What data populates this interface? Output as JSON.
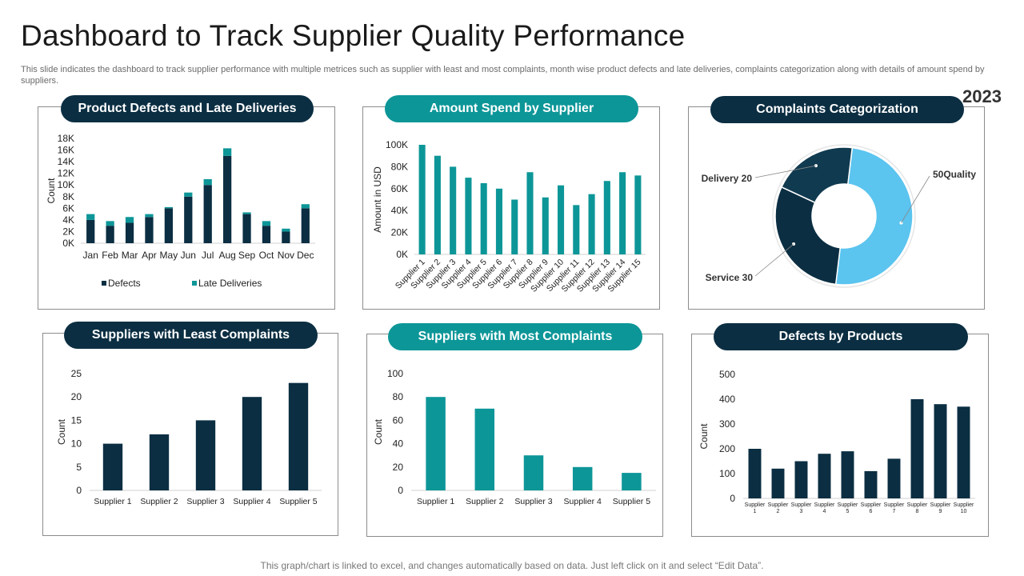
{
  "header": {
    "title": "Dashboard to Track Supplier Quality Performance",
    "subtitle": "This slide indicates the dashboard to track supplier performance with multiple metrices such as supplier with least and most complaints, month wise product defects and late deliveries, complaints categorization along with details of amount spend by suppliers.",
    "year": "2023"
  },
  "footer": {
    "note": "This graph/chart is linked to excel, and changes automatically based on data. Just left click on it and select “Edit Data”."
  },
  "colors": {
    "dark": "#0b2e42",
    "teal": "#0d9698",
    "light_blue": "#5bc4ef"
  },
  "chart_data": [
    {
      "id": "defects_late",
      "type": "bar",
      "stacked": true,
      "title": "Product Defects  and Late Deliveries",
      "ylabel": "Count",
      "categories": [
        "Jan",
        "Feb",
        "Mar",
        "Apr",
        "May",
        "Jun",
        "Jul",
        "Aug",
        "Sep",
        "Oct",
        "Nov",
        "Dec"
      ],
      "series": [
        {
          "name": "Defects",
          "color": "#0b2e42",
          "values": [
            4000,
            3000,
            3500,
            4500,
            6000,
            8000,
            10000,
            15000,
            5000,
            3000,
            2000,
            6000
          ]
        },
        {
          "name": "Late Deliveries",
          "color": "#0d9698",
          "values": [
            1000,
            800,
            1000,
            500,
            200,
            700,
            1000,
            1300,
            300,
            800,
            500,
            700
          ]
        }
      ],
      "ylim": [
        0,
        18000
      ],
      "yticks": [
        "0K",
        "2K",
        "4K",
        "6K",
        "8K",
        "10K",
        "12K",
        "14K",
        "16K",
        "18K"
      ],
      "legend": "bottom"
    },
    {
      "id": "amount_spend",
      "type": "bar",
      "title": "Amount Spend by Supplier",
      "ylabel": "Amount  in USD",
      "categories": [
        "Supplier 1",
        "Supplier 2",
        "Supplier 3",
        "Supplier 4",
        "Supplier 5",
        "Supplier 6",
        "Supplier 7",
        "Supplier 8",
        "Supplier 9",
        "Supplier 10",
        "Supplier 11",
        "Supplier 12",
        "Supplier 13",
        "Supplier 14",
        "Supplier 15"
      ],
      "values": [
        100000,
        90000,
        80000,
        70000,
        65000,
        60000,
        50000,
        75000,
        52000,
        63000,
        45000,
        55000,
        67000,
        75000,
        72000
      ],
      "ylim": [
        0,
        100000
      ],
      "yticks": [
        "0K",
        "20K",
        "40K",
        "60K",
        "80K",
        "100K"
      ]
    },
    {
      "id": "complaints_category",
      "type": "pie",
      "donut": true,
      "title": "Complaints Categorization",
      "slices": [
        {
          "name": "Quality",
          "value": 50,
          "label": "50Quality",
          "color": "#5bc4ef"
        },
        {
          "name": "Service",
          "value": 30,
          "label": "Service 30",
          "color": "#0b2e42"
        },
        {
          "name": "Delivery",
          "value": 20,
          "label": "Delivery 20",
          "color": "#103a50"
        }
      ]
    },
    {
      "id": "least_complaints",
      "type": "bar",
      "title": "Suppliers with Least Complaints",
      "ylabel": "Count",
      "categories": [
        "Supplier 1",
        "Supplier 2",
        "Supplier 3",
        "Supplier 4",
        "Supplier 5"
      ],
      "values": [
        10,
        12,
        15,
        20,
        23
      ],
      "ylim": [
        0,
        25
      ],
      "yticks": [
        "0",
        "5",
        "10",
        "15",
        "20",
        "25"
      ]
    },
    {
      "id": "most_complaints",
      "type": "bar",
      "title": "Suppliers with Most Complaints",
      "ylabel": "Count",
      "categories": [
        "Supplier 1",
        "Supplier 2",
        "Supplier 3",
        "Supplier 4",
        "Supplier 5"
      ],
      "values": [
        80,
        70,
        30,
        20,
        15
      ],
      "ylim": [
        0,
        100
      ],
      "yticks": [
        "0",
        "20",
        "40",
        "60",
        "80",
        "100"
      ]
    },
    {
      "id": "defects_products",
      "type": "bar",
      "title": "Defects by Products",
      "ylabel": "Count",
      "categories": [
        "Supplier 1",
        "Supplier 2",
        "Supplier 3",
        "Supplier 4",
        "Supplier 5",
        "Supplier 6",
        "Supplier 7",
        "Supplier 8",
        "Supplier 9",
        "Supplier 10"
      ],
      "values": [
        200,
        120,
        150,
        180,
        190,
        110,
        160,
        400,
        380,
        370
      ],
      "ylim": [
        0,
        500
      ],
      "yticks": [
        "0",
        "100",
        "200",
        "300",
        "400",
        "500"
      ]
    }
  ]
}
